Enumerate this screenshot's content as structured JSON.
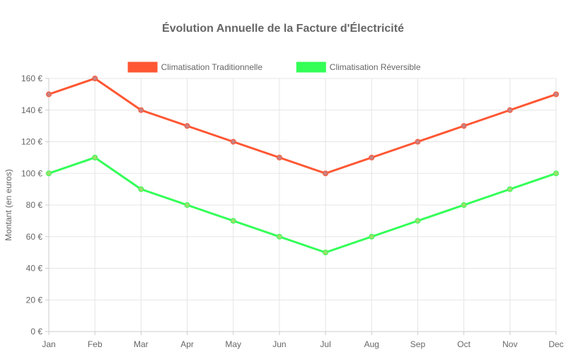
{
  "chart_data": {
    "type": "line",
    "title": "Évolution Annuelle de la Facture d'Électricité",
    "ylabel": "Montant (en euros)",
    "xlabel": "",
    "categories": [
      "Jan",
      "Feb",
      "Mar",
      "Apr",
      "May",
      "Jun",
      "Jul",
      "Aug",
      "Sep",
      "Oct",
      "Nov",
      "Dec"
    ],
    "ylim": [
      0,
      160
    ],
    "yticks": [
      0,
      20,
      40,
      60,
      80,
      100,
      120,
      140,
      160
    ],
    "y_tick_suffix": " €",
    "grid": true,
    "legend_position": "top",
    "series": [
      {
        "name": "Climatisation Traditionnelle",
        "color": "#ff5733",
        "values": [
          150,
          160,
          140,
          130,
          120,
          110,
          100,
          110,
          120,
          130,
          140,
          150
        ]
      },
      {
        "name": "Climatisation Réversible",
        "color": "#33ff57",
        "values": [
          100,
          110,
          90,
          80,
          70,
          60,
          50,
          60,
          70,
          80,
          90,
          100
        ]
      }
    ]
  }
}
